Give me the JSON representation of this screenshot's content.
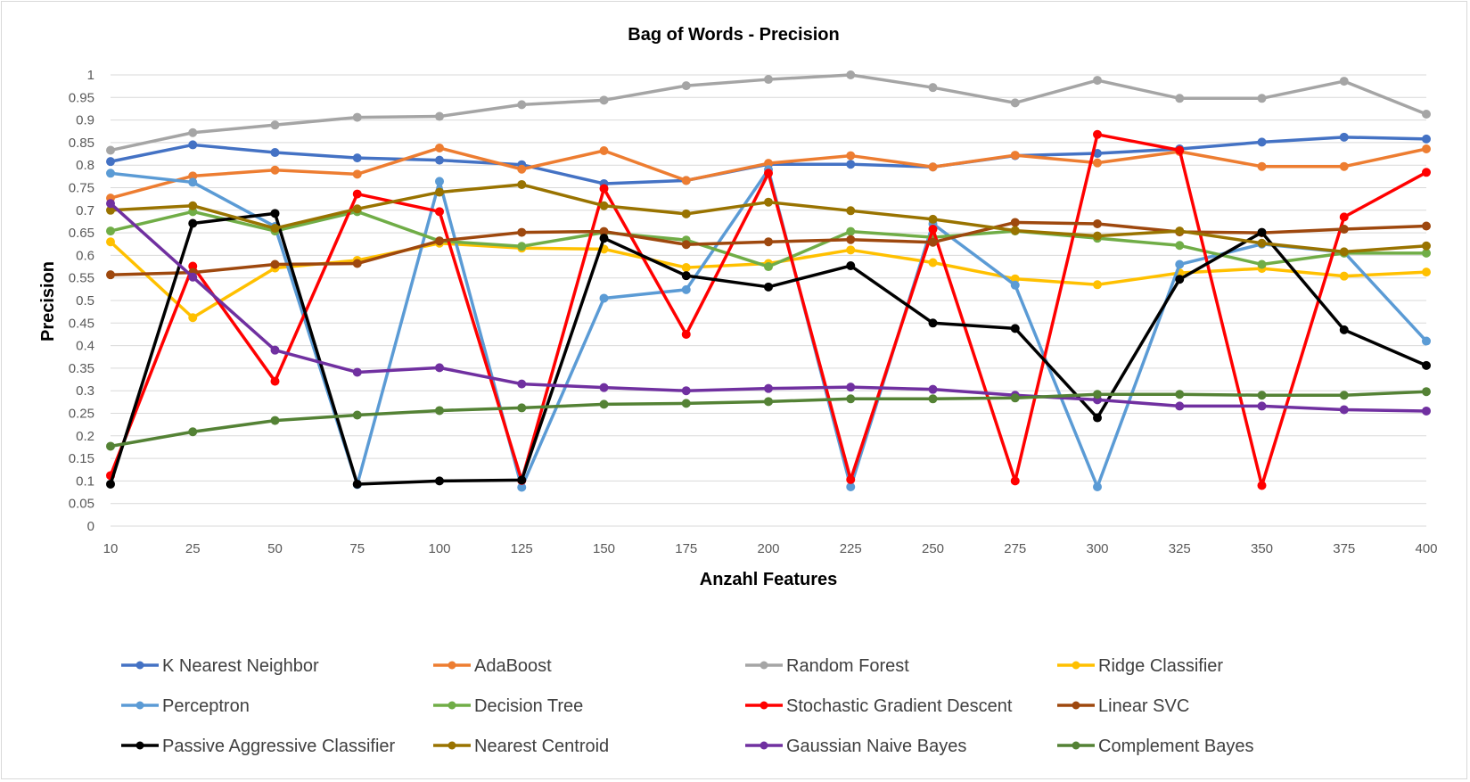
{
  "chart_data": {
    "type": "line",
    "title": "Bag of Words - Precision",
    "xlabel": "Anzahl Features",
    "ylabel": "Precision",
    "ylim": [
      0,
      1
    ],
    "yticks": [
      "0",
      "0.05",
      "0.1",
      "0.15",
      "0.2",
      "0.25",
      "0.3",
      "0.35",
      "0.4",
      "0.45",
      "0.5",
      "0.55",
      "0.6",
      "0.65",
      "0.7",
      "0.75",
      "0.8",
      "0.85",
      "0.9",
      "0.95",
      "1"
    ],
    "categories": [
      "10",
      "25",
      "50",
      "75",
      "100",
      "125",
      "150",
      "175",
      "200",
      "225",
      "250",
      "275",
      "300",
      "325",
      "350",
      "375",
      "400"
    ],
    "grid": "horizontal",
    "legend_position": "bottom",
    "series": [
      {
        "name": "K Nearest Neighbor",
        "color": "#4472C4",
        "values": [
          0.808,
          0.845,
          0.828,
          0.816,
          0.811,
          0.801,
          0.759,
          0.766,
          0.802,
          0.802,
          0.796,
          0.821,
          0.826,
          0.836,
          0.851,
          0.862,
          0.858
        ]
      },
      {
        "name": "AdaBoost",
        "color": "#ED7D31",
        "values": [
          0.727,
          0.776,
          0.789,
          0.78,
          0.838,
          0.791,
          0.832,
          0.766,
          0.804,
          0.821,
          0.796,
          0.822,
          0.805,
          0.83,
          0.797,
          0.797,
          0.836
        ]
      },
      {
        "name": "Random Forest",
        "color": "#A5A5A5",
        "values": [
          0.833,
          0.872,
          0.889,
          0.906,
          0.908,
          0.934,
          0.944,
          0.976,
          0.99,
          1.0,
          0.972,
          0.938,
          0.988,
          0.948,
          0.948,
          0.986,
          0.913
        ]
      },
      {
        "name": "Ridge Classifier",
        "color": "#FFC000",
        "values": [
          0.63,
          0.462,
          0.572,
          0.589,
          0.627,
          0.616,
          0.614,
          0.573,
          0.582,
          0.612,
          0.584,
          0.548,
          0.535,
          0.561,
          0.571,
          0.554,
          0.563
        ]
      },
      {
        "name": "Perceptron",
        "color": "#5B9BD5",
        "values": [
          0.782,
          0.762,
          0.664,
          0.092,
          0.764,
          0.086,
          0.505,
          0.524,
          0.79,
          0.087,
          0.67,
          0.534,
          0.087,
          0.58,
          0.625,
          0.607,
          0.41
        ]
      },
      {
        "name": "Decision Tree",
        "color": "#70AD47",
        "values": [
          0.654,
          0.697,
          0.654,
          0.697,
          0.632,
          0.62,
          0.651,
          0.634,
          0.575,
          0.653,
          0.64,
          0.654,
          0.638,
          0.622,
          0.58,
          0.605,
          0.605
        ]
      },
      {
        "name": "Stochastic Gradient Descent",
        "color": "#FF0000",
        "values": [
          0.112,
          0.576,
          0.321,
          0.736,
          0.697,
          0.101,
          0.748,
          0.425,
          0.782,
          0.103,
          0.658,
          0.1,
          0.868,
          0.833,
          0.09,
          0.685,
          0.784
        ]
      },
      {
        "name": "Linear SVC",
        "color": "#9E480E",
        "values": [
          0.557,
          0.562,
          0.58,
          0.582,
          0.632,
          0.651,
          0.653,
          0.624,
          0.63,
          0.635,
          0.629,
          0.673,
          0.67,
          0.652,
          0.65,
          0.658,
          0.665
        ]
      },
      {
        "name": "Passive Aggressive Classifier",
        "color": "#000000",
        "values": [
          0.093,
          0.671,
          0.693,
          0.093,
          0.1,
          0.102,
          0.638,
          0.555,
          0.53,
          0.577,
          0.45,
          0.438,
          0.24,
          0.547,
          0.651,
          0.435,
          0.356
        ]
      },
      {
        "name": "Nearest Centroid",
        "color": "#997300",
        "values": [
          0.7,
          0.71,
          0.66,
          0.703,
          0.74,
          0.757,
          0.71,
          0.692,
          0.718,
          0.699,
          0.68,
          0.655,
          0.643,
          0.654,
          0.627,
          0.608,
          0.621
        ]
      },
      {
        "name": "Gaussian Naive Bayes",
        "color": "#7030A0",
        "values": [
          0.715,
          0.552,
          0.39,
          0.341,
          0.351,
          0.315,
          0.307,
          0.3,
          0.305,
          0.308,
          0.303,
          0.29,
          0.28,
          0.266,
          0.266,
          0.258,
          0.255
        ]
      },
      {
        "name": "Complement Bayes",
        "color": "#548235",
        "values": [
          0.177,
          0.209,
          0.234,
          0.246,
          0.256,
          0.262,
          0.27,
          0.272,
          0.276,
          0.282,
          0.282,
          0.284,
          0.292,
          0.292,
          0.29,
          0.29,
          0.298
        ]
      }
    ]
  }
}
